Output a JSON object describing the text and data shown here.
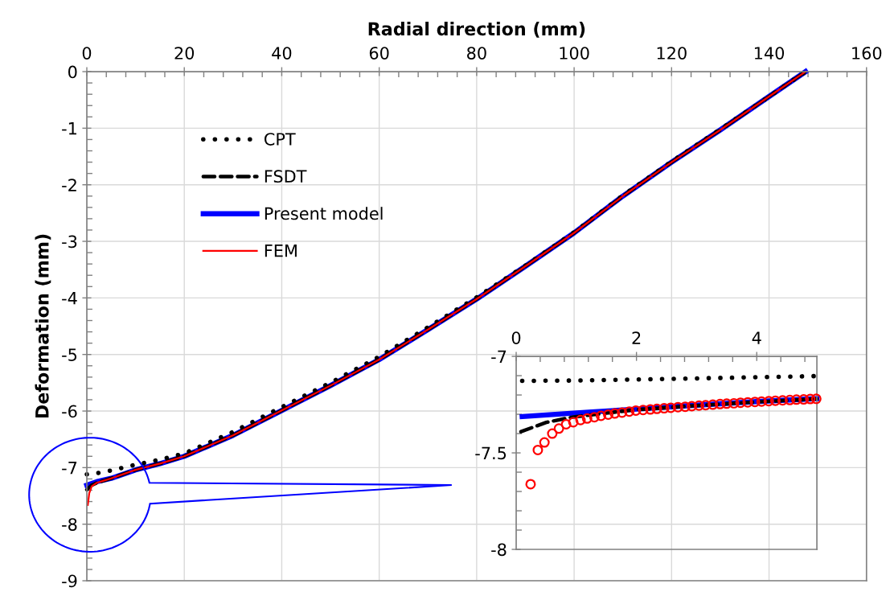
{
  "chart_data": [
    {
      "type": "line",
      "xlabel": "Radial direction (mm)",
      "ylabel": "Deformation (mm)",
      "xlim": [
        0,
        160
      ],
      "xticks": [
        0,
        20,
        40,
        60,
        80,
        100,
        120,
        140,
        160
      ],
      "ylim": [
        -9,
        0
      ],
      "yticks": [
        -9,
        -8,
        -7,
        -6,
        -5,
        -4,
        -3,
        -2,
        -1,
        0
      ],
      "grid": true,
      "legend": "upper left",
      "series": [
        {
          "name": "CPT",
          "color": "#000000",
          "line_style": "dotted",
          "x": [
            0,
            2,
            5,
            10,
            15,
            20,
            30,
            40,
            50,
            60,
            70,
            80,
            90,
            100,
            110,
            120,
            130,
            140,
            147.5
          ],
          "values": [
            -7.12,
            -7.1,
            -7.05,
            -6.95,
            -6.86,
            -6.75,
            -6.37,
            -5.93,
            -5.5,
            -5.04,
            -4.52,
            -3.99,
            -3.43,
            -2.84,
            -2.19,
            -1.59,
            -1.02,
            -0.44,
            0
          ]
        },
        {
          "name": "FSDT",
          "color": "#000000",
          "line_style": "dashed",
          "x": [
            0,
            1,
            2,
            5,
            10,
            15,
            20,
            30,
            40,
            50,
            60,
            70,
            80,
            90,
            100,
            110,
            120,
            130,
            140,
            147.5
          ],
          "values": [
            -7.39,
            -7.31,
            -7.27,
            -7.19,
            -7.04,
            -6.93,
            -6.8,
            -6.43,
            -5.99,
            -5.55,
            -5.09,
            -4.56,
            -4.02,
            -3.44,
            -2.85,
            -2.2,
            -1.6,
            -1.03,
            -0.44,
            0
          ]
        },
        {
          "name": "Present model",
          "color": "#0000ff",
          "line_style": "solid",
          "x": [
            0,
            2,
            5,
            10,
            15,
            20,
            30,
            40,
            50,
            60,
            70,
            80,
            90,
            100,
            110,
            120,
            130,
            140,
            147.5
          ],
          "values": [
            -7.31,
            -7.25,
            -7.19,
            -7.04,
            -6.93,
            -6.8,
            -6.43,
            -5.99,
            -5.55,
            -5.09,
            -4.56,
            -4.02,
            -3.44,
            -2.85,
            -2.2,
            -1.6,
            -1.03,
            -0.44,
            0
          ]
        },
        {
          "name": "FEM",
          "color": "#ff0000",
          "line_style": "solid",
          "x": [
            0.2,
            0.5,
            1,
            2,
            5,
            10,
            15,
            20,
            30,
            40,
            50,
            60,
            70,
            80,
            90,
            100,
            110,
            120,
            130,
            140,
            147.5
          ],
          "values": [
            -7.66,
            -7.45,
            -7.33,
            -7.27,
            -7.19,
            -7.04,
            -6.93,
            -6.8,
            -6.43,
            -5.99,
            -5.55,
            -5.09,
            -4.56,
            -4.02,
            -3.44,
            -2.85,
            -2.2,
            -1.6,
            -1.03,
            -0.44,
            0
          ]
        }
      ]
    },
    {
      "type": "line",
      "xlim": [
        0,
        5
      ],
      "xticks": [
        0,
        2,
        4
      ],
      "ylim": [
        -8,
        -7
      ],
      "yticks": [
        -8,
        -7.5,
        -7
      ],
      "series": [
        {
          "color": "#000000",
          "line_style": "dotted",
          "x": [
            0.1,
            1,
            2,
            3,
            4,
            5
          ],
          "values": [
            -7.127,
            -7.125,
            -7.12,
            -7.114,
            -7.108,
            -7.102
          ]
        },
        {
          "color": "#000000",
          "line_style": "dashed",
          "x": [
            0.08,
            0.5,
            0.95,
            1.5,
            2,
            3,
            4,
            5
          ],
          "values": [
            -7.39,
            -7.342,
            -7.314,
            -7.294,
            -7.276,
            -7.255,
            -7.236,
            -7.22
          ]
        },
        {
          "color": "#0000ff",
          "line_style": "solid",
          "x": [
            0.1,
            0.95,
            2,
            3,
            4,
            5
          ],
          "values": [
            -7.312,
            -7.294,
            -7.273,
            -7.253,
            -7.234,
            -7.219
          ]
        },
        {
          "type": "scatter",
          "color": "#ff0000",
          "marker": "circle",
          "x": [
            0.24,
            0.36,
            0.47,
            0.6,
            0.71,
            0.83,
            0.95,
            1.07,
            1.18,
            1.3,
            1.41,
            1.53,
            1.64,
            1.76,
            1.88,
            1.99,
            2.11,
            2.23,
            2.34,
            2.46,
            2.57,
            2.69,
            2.81,
            2.92,
            3.04,
            3.15,
            3.27,
            3.39,
            3.5,
            3.62,
            3.73,
            3.85,
            3.97,
            4.08,
            4.2,
            4.31,
            4.43,
            4.55,
            4.66,
            4.78,
            4.89,
            4.99
          ],
          "values": [
            -7.662,
            -7.485,
            -7.446,
            -7.4,
            -7.374,
            -7.352,
            -7.341,
            -7.33,
            -7.322,
            -7.315,
            -7.308,
            -7.302,
            -7.296,
            -7.291,
            -7.286,
            -7.281,
            -7.278,
            -7.275,
            -7.272,
            -7.269,
            -7.266,
            -7.263,
            -7.261,
            -7.258,
            -7.255,
            -7.253,
            -7.25,
            -7.247,
            -7.245,
            -7.243,
            -7.24,
            -7.238,
            -7.236,
            -7.234,
            -7.232,
            -7.23,
            -7.228,
            -7.226,
            -7.224,
            -7.223,
            -7.221,
            -7.22
          ]
        }
      ]
    }
  ]
}
